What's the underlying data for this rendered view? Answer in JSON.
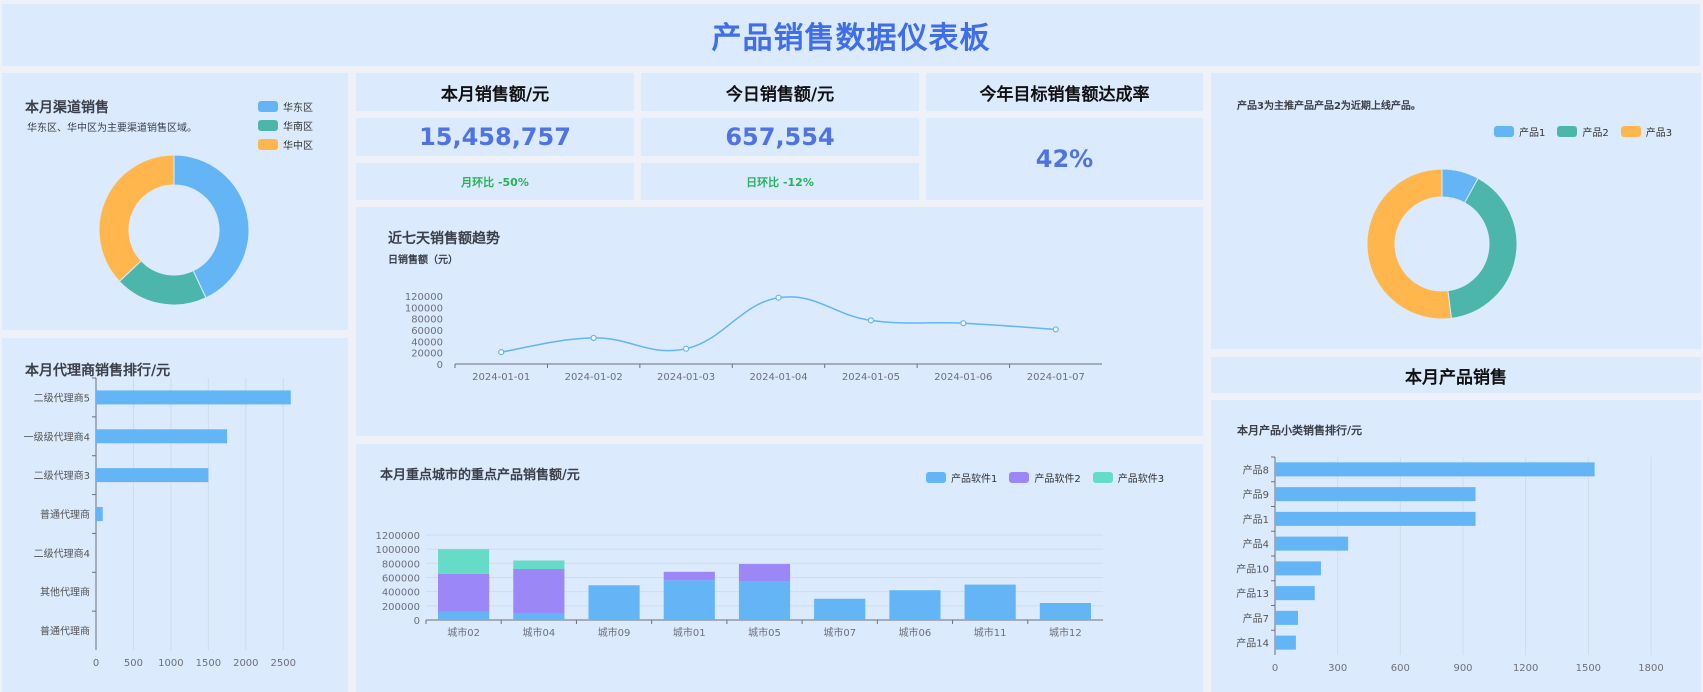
{
  "page_title": "产品销售数据仪表板",
  "colors": {
    "blue": "#63b5f6",
    "teal": "#4db6ac",
    "orange": "#ffb74d",
    "purple": "#9b87f5",
    "cyan": "#66dcc8",
    "title": "#3f6ee8",
    "green": "#27b25b"
  },
  "channel": {
    "title": "本月渠道销售",
    "subtitle": "华东区、华中区为主要渠道销售区域。"
  },
  "kpis": {
    "month": {
      "label": "本月销售额/元",
      "value": "15,458,757",
      "compare": "月环比 -50%"
    },
    "today": {
      "label": "今日销售额/元",
      "value": "657,554",
      "compare": "日环比 -12%"
    },
    "target": {
      "label": "今年目标销售额达成率",
      "value": "42%"
    }
  },
  "trend": {
    "title": "近七天销售额趋势",
    "subtitle": "日销售额（元）"
  },
  "dealer": {
    "title": "本月代理商销售排行/元"
  },
  "city": {
    "title": "本月重点城市的重点产品销售额/元"
  },
  "product_pie": {
    "subtitle": "产品3为主推产品产品2为近期上线产品。"
  },
  "product_sales": {
    "header": "本月产品销售",
    "title": "本月产品小类销售排行/元"
  },
  "chart_data": [
    {
      "id": "channel_pie",
      "type": "pie",
      "donut": true,
      "legend": "top-right",
      "categories": [
        "华东区",
        "华南区",
        "华中区"
      ],
      "values": [
        43,
        20,
        37
      ],
      "colors": [
        "#63b5f6",
        "#4db6ac",
        "#ffb74d"
      ]
    },
    {
      "id": "dealer_bar",
      "type": "bar",
      "orientation": "horizontal",
      "categories": [
        "二级代理商5",
        "一级级代理商4",
        "二级代理商3",
        "普通代理商",
        "二级代理商4",
        "其他代理商",
        "普通代理商"
      ],
      "values": [
        2600,
        1750,
        1500,
        90,
        0,
        0,
        0
      ],
      "xticks": [
        "0",
        "500",
        "1000",
        "1500",
        "2000",
        "2500"
      ],
      "xlim": [
        0,
        2750
      ]
    },
    {
      "id": "trend_line",
      "type": "line",
      "smooth": true,
      "x": [
        "2024-01-01",
        "2024-01-02",
        "2024-01-03",
        "2024-01-04",
        "2024-01-05",
        "2024-01-06",
        "2024-01-07"
      ],
      "values": [
        21000,
        46000,
        27000,
        117000,
        77000,
        72000,
        61000
      ],
      "yticks": [
        "0",
        "20000",
        "40000",
        "60000",
        "80000",
        "100000",
        "120000"
      ],
      "ylim": [
        0,
        120000
      ]
    },
    {
      "id": "city_bar",
      "type": "bar",
      "stacked": true,
      "legend": "top-right",
      "categories": [
        "城市02",
        "城市04",
        "城市09",
        "城市01",
        "城市05",
        "城市07",
        "城市06",
        "城市11",
        "城市12"
      ],
      "series": [
        {
          "name": "产品软件1",
          "color": "#63b5f6",
          "values": [
            120000,
            90000,
            490000,
            560000,
            550000,
            300000,
            420000,
            500000,
            240000
          ]
        },
        {
          "name": "产品软件2",
          "color": "#9b87f5",
          "values": [
            530000,
            630000,
            0,
            120000,
            240000,
            0,
            0,
            0,
            0
          ]
        },
        {
          "name": "产品软件3",
          "color": "#66dcc8",
          "values": [
            350000,
            120000,
            0,
            0,
            0,
            0,
            0,
            0,
            0
          ]
        }
      ],
      "yticks": [
        "0",
        "200000",
        "400000",
        "600000",
        "800000",
        "1000000",
        "1200000"
      ],
      "ylim": [
        0,
        1200000
      ]
    },
    {
      "id": "product_pie",
      "type": "pie",
      "donut": true,
      "legend": "top-right",
      "categories": [
        "产品1",
        "产品2",
        "产品3"
      ],
      "values": [
        8,
        40,
        52
      ],
      "colors": [
        "#63b5f6",
        "#4db6ac",
        "#ffb74d"
      ]
    },
    {
      "id": "product_bar",
      "type": "bar",
      "orientation": "horizontal",
      "categories": [
        "产品8",
        "产品9",
        "产品1",
        "产品4",
        "产品10",
        "产品13",
        "产品7",
        "产品14"
      ],
      "values": [
        1530,
        960,
        960,
        350,
        220,
        190,
        110,
        100
      ],
      "xticks": [
        "0",
        "300",
        "600",
        "900",
        "1200",
        "1500",
        "1800"
      ],
      "xlim": [
        0,
        1800
      ]
    }
  ]
}
